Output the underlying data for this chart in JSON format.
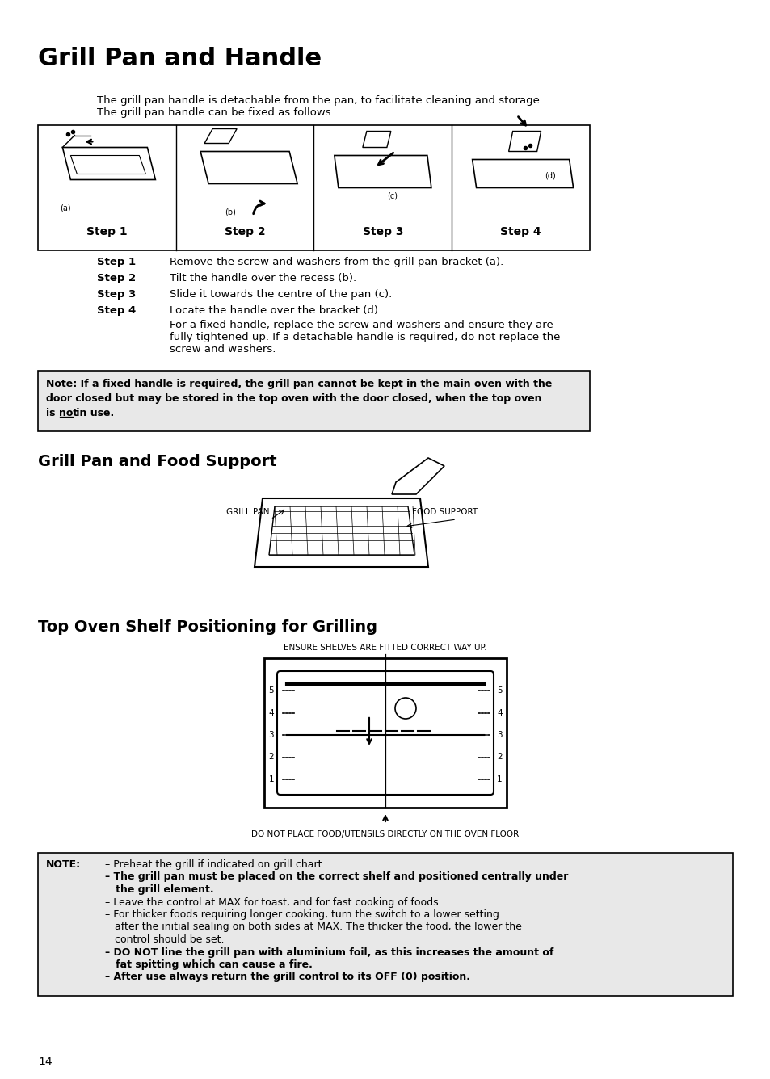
{
  "bg_color": "#ffffff",
  "page_width": 9.54,
  "page_height": 13.36,
  "main_title": "Grill Pan and Handle",
  "intro_text": "The grill pan handle is detachable from the pan, to facilitate cleaning and storage.\nThe grill pan handle can be fixed as follows:",
  "step_labels": [
    "Step 1",
    "Step 2",
    "Step 3",
    "Step 4"
  ],
  "step1_text": "Remove the screw and washers from the grill pan bracket (a).",
  "step2_text": "Tilt the handle over the recess (b).",
  "step3_text": "Slide it towards the centre of the pan (c).",
  "step4_text_line1": "Locate the handle over the bracket (d).",
  "step4_text_line2": "For a fixed handle, replace the screw and washers and ensure they are\nfully tightened up. If a detachable handle is required, do not replace the\nscrew and washers.",
  "note_text_lines": [
    "Note: If a fixed handle is required, the grill pan cannot be kept in the main oven with the",
    "door closed but may be stored in the top oven with the door closed, when the top oven",
    "is not in use."
  ],
  "section2_title": "Grill Pan and Food Support",
  "label_grill_pan": "GRILL PAN",
  "label_food_support": "FOOD SUPPORT",
  "section3_title": "Top Oven Shelf Positioning for Grilling",
  "ensure_text": "ENSURE SHELVES ARE FITTED CORRECT WAY UP.",
  "do_not_text": "DO NOT PLACE FOOD/UTENSILS DIRECTLY ON THE OVEN FLOOR",
  "note2_label": "NOTE:",
  "note2_lines": [
    "– Preheat the grill if indicated on grill chart.",
    "– The grill pan must be placed on the correct shelf and positioned centrally under",
    "   the grill element.",
    "– Leave the control at MAX for toast, and for fast cooking of foods.",
    "– For thicker foods requiring longer cooking, turn the switch to a lower setting",
    "   after the initial sealing on both sides at MAX. The thicker the food, the lower the",
    "   control should be set.",
    "– DO NOT line the grill pan with aluminium foil, as this increases the amount of",
    "   fat spitting which can cause a fire.",
    "– After use always return the grill control to its OFF (0) position."
  ],
  "note2_bold_lines": [
    "– The grill pan must be placed on the correct shelf and positioned centrally under",
    "   the grill element.",
    "– DO NOT line the grill pan with aluminium foil, as this increases the amount of",
    "   fat spitting which can cause a fire.",
    "– After use always return the grill control to its OFF (0) position."
  ],
  "page_number": "14"
}
